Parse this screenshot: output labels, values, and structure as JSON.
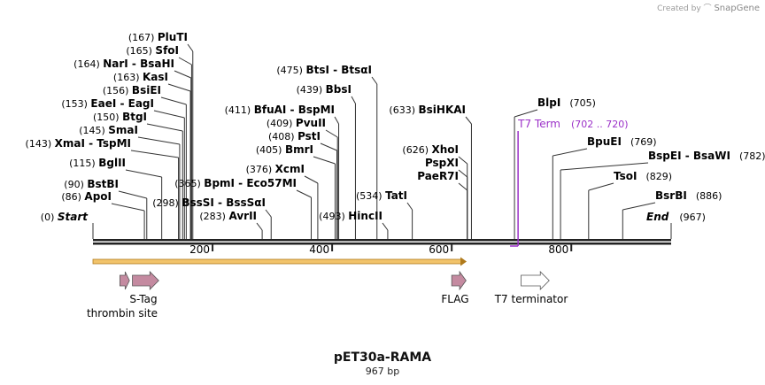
{
  "credit": {
    "prefix": "Created by",
    "brand": "SnapGene"
  },
  "plasmid": {
    "name": "pET30a-RAMA",
    "length_label": "967 bp",
    "length": 967
  },
  "ends": {
    "start_pos": "(0)",
    "start_label": "Start",
    "end_label": "End",
    "end_pos": "(967)"
  },
  "ruler": [
    200,
    400,
    600,
    800
  ],
  "sites": [
    {
      "pos": 167,
      "pos_label": "(167)",
      "name": "PluTI"
    },
    {
      "pos": 165,
      "pos_label": "(165)",
      "name": "SfoI"
    },
    {
      "pos": 164,
      "pos_label": "(164)",
      "name": "NarI  -  BsaHI"
    },
    {
      "pos": 163,
      "pos_label": "(163)",
      "name": "KasI"
    },
    {
      "pos": 156,
      "pos_label": "(156)",
      "name": "BsiEI"
    },
    {
      "pos": 153,
      "pos_label": "(153)",
      "name": "EaeI  -  EagI"
    },
    {
      "pos": 150,
      "pos_label": "(150)",
      "name": "BtgI"
    },
    {
      "pos": 145,
      "pos_label": "(145)",
      "name": "SmaI"
    },
    {
      "pos": 143,
      "pos_label": "(143)",
      "name": "XmaI  -  TspMI"
    },
    {
      "pos": 115,
      "pos_label": "(115)",
      "name": "BglII"
    },
    {
      "pos": 90,
      "pos_label": "(90)",
      "name": "BstBI"
    },
    {
      "pos": 86,
      "pos_label": "(86)",
      "name": "ApoI"
    },
    {
      "pos": 298,
      "pos_label": "(298)",
      "name": "BssSI  -  BssSαI"
    },
    {
      "pos": 283,
      "pos_label": "(283)",
      "name": "AvrII"
    },
    {
      "pos": 365,
      "pos_label": "(365)",
      "name": "BpmI  -  Eco57MI"
    },
    {
      "pos": 475,
      "pos_label": "(475)",
      "name": "BtsI  -  BtsαI"
    },
    {
      "pos": 439,
      "pos_label": "(439)",
      "name": "BbsI"
    },
    {
      "pos": 411,
      "pos_label": "(411)",
      "name": "BfuAI  -  BspMI"
    },
    {
      "pos": 409,
      "pos_label": "(409)",
      "name": "PvuII"
    },
    {
      "pos": 408,
      "pos_label": "(408)",
      "name": "PstI"
    },
    {
      "pos": 405,
      "pos_label": "(405)",
      "name": "BmrI"
    },
    {
      "pos": 376,
      "pos_label": "(376)",
      "name": "XcmI"
    },
    {
      "pos": 493,
      "pos_label": "(493)",
      "name": "HincII"
    },
    {
      "pos": 534,
      "pos_label": "(534)",
      "name": "TatI"
    },
    {
      "pos": 633,
      "pos_label": "(633)",
      "name": "BsiHKAI"
    },
    {
      "pos": 626,
      "pos_label": "(626)",
      "name": "XhoI"
    },
    {
      "pos": 626,
      "pos_label": "",
      "name": "PspXI"
    },
    {
      "pos": 626,
      "pos_label": "",
      "name": "PaeR7I"
    },
    {
      "pos": 705,
      "pos_label": "(705)",
      "name": "BlpI"
    },
    {
      "pos": 769,
      "pos_label": "(769)",
      "name": "BpuEI"
    },
    {
      "pos": 782,
      "pos_label": "(782)",
      "name": "BspEI  -  BsaWI"
    },
    {
      "pos": 829,
      "pos_label": "(829)",
      "name": "TsoI"
    },
    {
      "pos": 886,
      "pos_label": "(886)",
      "name": "BsrBI"
    }
  ],
  "terminator_site": {
    "name": "T7 Term",
    "range": "(702 .. 720)",
    "color": "#9b30c8"
  },
  "orf": {
    "start": 0,
    "end": 625,
    "color": "#f2c46b"
  },
  "features": [
    {
      "name": "thrombin site",
      "start": 45,
      "end": 61,
      "color": "#c48aa0"
    },
    {
      "name": "S-Tag",
      "start": 66,
      "end": 110,
      "color": "#c48aa0"
    },
    {
      "name": "FLAG",
      "start": 600,
      "end": 624,
      "color": "#c48aa0"
    },
    {
      "name": "T7 terminator",
      "start": 716,
      "end": 763,
      "color": "#ffffff"
    }
  ]
}
